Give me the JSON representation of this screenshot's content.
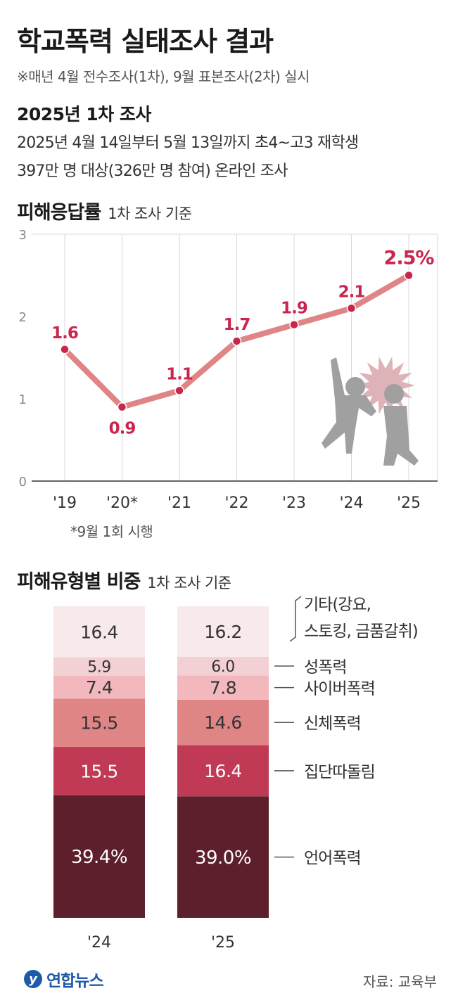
{
  "title": "학교폭력 실태조사 결과",
  "note": "※매년 4월 전수조사(1차), 9월 표본조사(2차) 실시",
  "survey": {
    "title": "2025년 1차 조사",
    "line1": "2025년 4월 14일부터 5월 13일까지 초4~고3 재학생",
    "line2": "397만 명 대상(326만 명 참여) 온라인 조사"
  },
  "section1": {
    "title": "피해응답률",
    "sub": "1차 조사 기준"
  },
  "section2": {
    "title": "피해유형별 비중",
    "sub": "1차 조사 기준"
  },
  "footnote": "*9월 1회 시행",
  "source": "자료: 교육부",
  "logo": {
    "mark": "y",
    "text": "연합뉴스"
  },
  "colors": {
    "line": "#e08585",
    "point": "#c8264c",
    "label": "#c8264c"
  },
  "chart_data": [
    {
      "type": "line",
      "categories": [
        "'19",
        "'20*",
        "'21",
        "'22",
        "'23",
        "'24",
        "'25"
      ],
      "values": [
        1.6,
        0.9,
        1.1,
        1.7,
        1.9,
        2.1,
        2.5
      ],
      "data_labels": [
        "1.6",
        "0.9",
        "1.1",
        "1.7",
        "1.9",
        "2.1",
        "2.5%"
      ],
      "yticks": [
        "0",
        "1",
        "2",
        "3"
      ],
      "ylim": [
        0,
        3
      ],
      "grid": "vertical"
    },
    {
      "type": "bar",
      "stacked": true,
      "categories": [
        "'24",
        "'25"
      ],
      "series": [
        {
          "name": "언어폭력",
          "values": [
            39.4,
            39.0
          ],
          "labels": [
            "39.4%",
            "39.0%"
          ],
          "color": "#5c1f2b"
        },
        {
          "name": "집단따돌림",
          "values": [
            15.5,
            16.4
          ],
          "labels": [
            "15.5",
            "16.4"
          ],
          "color": "#c03a55"
        },
        {
          "name": "신체폭력",
          "values": [
            15.5,
            14.6
          ],
          "labels": [
            "15.5",
            "14.6"
          ],
          "color": "#e08585"
        },
        {
          "name": "사이버폭력",
          "values": [
            7.4,
            7.8
          ],
          "labels": [
            "7.4",
            "7.8"
          ],
          "color": "#f2b8be"
        },
        {
          "name": "성폭력",
          "values": [
            5.9,
            6.0
          ],
          "labels": [
            "5.9",
            "6.0"
          ],
          "color": "#f3d0d3"
        },
        {
          "name": "기타(강요,\n스토킹, 금품갈취)",
          "values": [
            16.4,
            16.2
          ],
          "labels": [
            "16.4",
            "16.2"
          ],
          "color": "#f8e9ea"
        }
      ]
    }
  ]
}
